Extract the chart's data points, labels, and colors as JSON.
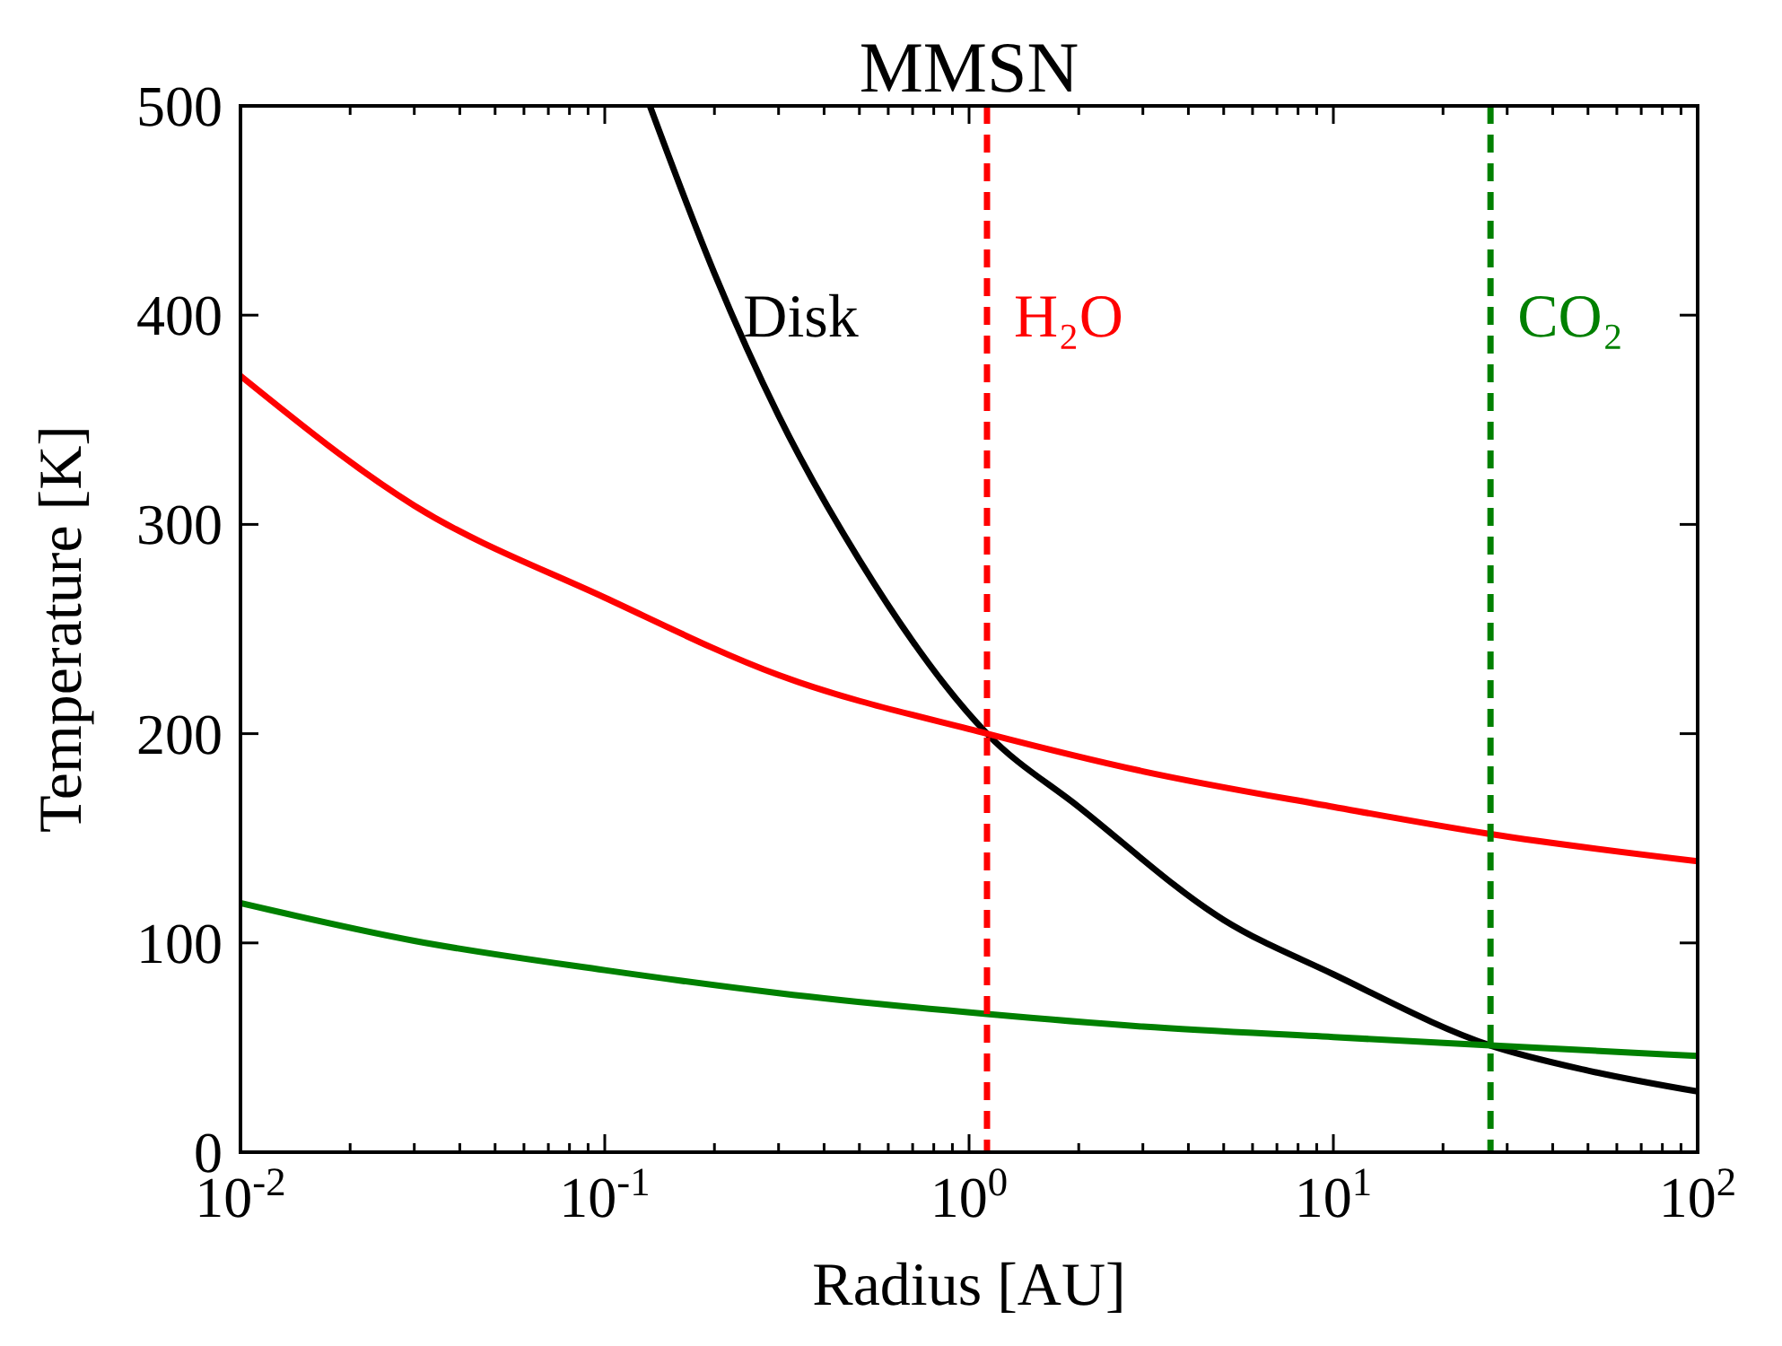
{
  "chart_data": {
    "type": "line",
    "title": "MMSN",
    "xlabel": "Radius [AU]",
    "ylabel": "Temperature [K]",
    "log": "x",
    "xlim": [
      0.01,
      100
    ],
    "ylim": [
      0,
      500
    ],
    "xticks": [
      {
        "value": 0.01,
        "label": "10$^{-2}$"
      },
      {
        "value": 0.02,
        "label": null
      },
      {
        "value": 0.03,
        "label": null
      },
      {
        "value": 0.04,
        "label": null
      },
      {
        "value": 0.05,
        "label": null
      },
      {
        "value": 0.06,
        "label": null
      },
      {
        "value": 0.07,
        "label": null
      },
      {
        "value": 0.08,
        "label": null
      },
      {
        "value": 0.09,
        "label": null
      },
      {
        "value": 0.1,
        "label": "10$^{-1}$"
      },
      {
        "value": 0.2,
        "label": null
      },
      {
        "value": 0.3,
        "label": null
      },
      {
        "value": 0.4,
        "label": null
      },
      {
        "value": 0.5,
        "label": null
      },
      {
        "value": 0.6,
        "label": null
      },
      {
        "value": 0.7,
        "label": null
      },
      {
        "value": 0.8,
        "label": null
      },
      {
        "value": 0.9,
        "label": null
      },
      {
        "value": 1,
        "label": "10$^{0}$"
      },
      {
        "value": 2,
        "label": null
      },
      {
        "value": 3,
        "label": null
      },
      {
        "value": 4,
        "label": null
      },
      {
        "value": 5,
        "label": null
      },
      {
        "value": 6,
        "label": null
      },
      {
        "value": 7,
        "label": null
      },
      {
        "value": 8,
        "label": null
      },
      {
        "value": 9,
        "label": null
      },
      {
        "value": 10,
        "label": "10$^{1}$"
      },
      {
        "value": 20,
        "label": null
      },
      {
        "value": 30,
        "label": null
      },
      {
        "value": 40,
        "label": null
      },
      {
        "value": 50,
        "label": null
      },
      {
        "value": 60,
        "label": null
      },
      {
        "value": 70,
        "label": null
      },
      {
        "value": 80,
        "label": null
      },
      {
        "value": 90,
        "label": null
      },
      {
        "value": 100,
        "label": "10$^{2}$"
      }
    ],
    "yticks": [
      0,
      100,
      200,
      300,
      400,
      500
    ],
    "grid": false,
    "line_style": "solid",
    "marker": "none",
    "series": [
      {
        "name": "Disk",
        "color": "#000000",
        "x": [
          0.133,
          0.2,
          0.3,
          0.5,
          1.12,
          2,
          5,
          10,
          27,
          50,
          100
        ],
        "values": [
          500,
          420,
          352,
          283,
          200,
          165,
          111,
          85,
          51,
          39,
          29
        ]
      },
      {
        "color": "#ff0000",
        "x": [
          0.01,
          0.03,
          0.1,
          0.3,
          1.12,
          3,
          10,
          27,
          100
        ],
        "values": [
          371,
          309,
          265,
          228,
          200,
          182,
          165,
          152,
          139
        ]
      },
      {
        "color": "#008000",
        "x": [
          0.01,
          0.03,
          0.1,
          0.3,
          1.12,
          3,
          10,
          27,
          100
        ],
        "values": [
          119,
          101,
          87,
          76,
          66,
          60,
          55,
          51,
          46
        ]
      }
    ],
    "ref_lines": [
      {
        "axis": "x",
        "value": 1.12,
        "label": "H₂O",
        "color": "#ff0000",
        "line_style": "dashed"
      },
      {
        "axis": "x",
        "value": 27,
        "label": "CO₂",
        "color": "#008000",
        "line_style": "dashed"
      }
    ]
  }
}
